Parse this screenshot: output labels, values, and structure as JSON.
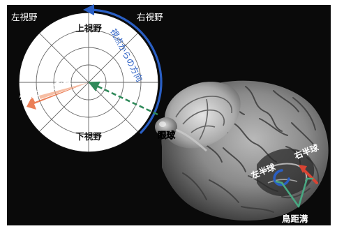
{
  "labels": {
    "left_visual_field": "左視野",
    "right_visual_field": "右視野",
    "upper_visual_field": "上視野",
    "lower_visual_field": "下視野",
    "direction_from_viewpoint": "視点からの方向",
    "distance_from_viewpoint": "視点からの距離",
    "eyeball": "眼球",
    "left_hemisphere": "左半球",
    "right_hemisphere": "右半球",
    "calcarine_sulcus": "鳥距溝"
  },
  "colors": {
    "background": "#0a0a0a",
    "polar_chart_face": "#ffffff",
    "polar_grid": "#666666",
    "direction_arrow": "#2a5fc4",
    "distance_arrow": "#e8683a",
    "gaze_arrow": "#2f8a5a",
    "calcarine_marker": "#49a882",
    "left_hemisphere_marker": "#2a5fc4",
    "right_hemisphere_marker": "#d94433",
    "brain_gray": "#8a8a8a"
  },
  "icons": {
    "polar_chart": "visual-field-polar-chart",
    "brain": "brain-3d-render"
  }
}
